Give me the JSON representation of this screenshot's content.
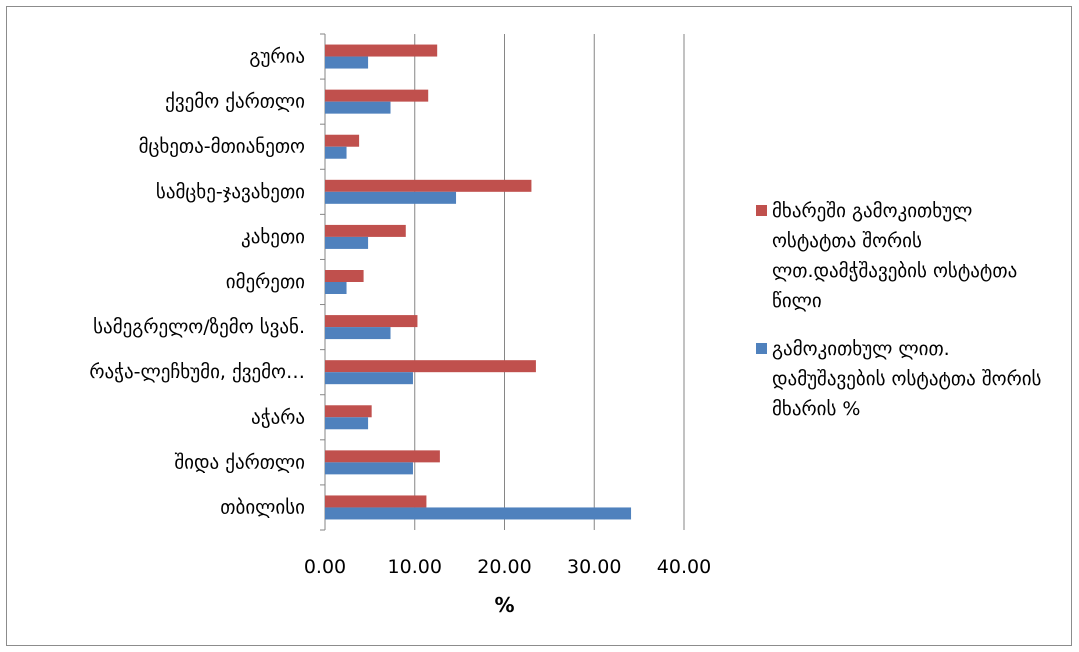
{
  "chart_data": {
    "type": "bar",
    "orientation": "horizontal",
    "categories": [
      "გურია",
      "ქვემო ქართლი",
      "მცხეთა-მთიანეთო",
      "სამცხე-ჯავახეთი",
      "კახეთი",
      "იმერეთი",
      "სამეგრელო/ზემო სვან.",
      "რაჭა-ლეჩხუმი, ქვემო…",
      "აჭარა",
      "შიდა ქართლი",
      "თბილისი"
    ],
    "series": [
      {
        "name": "მხარეში გამოკითხულ ოსტატთა შორის ლთ.დამჭშავების ოსტატთა წილი",
        "color": "#c0504d",
        "values": [
          12.5,
          11.5,
          3.8,
          23.0,
          9.0,
          4.3,
          10.3,
          23.5,
          5.2,
          12.8,
          11.3
        ]
      },
      {
        "name": "გამოკითხულ ლით. დამუშავების ოსტატთა შორის მხარის %",
        "color": "#4f81bd",
        "values": [
          4.8,
          7.3,
          2.4,
          14.6,
          4.8,
          2.4,
          7.3,
          9.8,
          4.8,
          9.8,
          34.1
        ]
      }
    ],
    "xlabel": "%",
    "ylabel": "",
    "xlim": [
      0,
      40
    ],
    "xticks": [
      0,
      10,
      20,
      30,
      40
    ],
    "xtick_labels": [
      "0.00",
      "10.00",
      "20.00",
      "30.00",
      "40.00"
    ],
    "grid": "vertical major gridlines",
    "legend_position": "right"
  }
}
